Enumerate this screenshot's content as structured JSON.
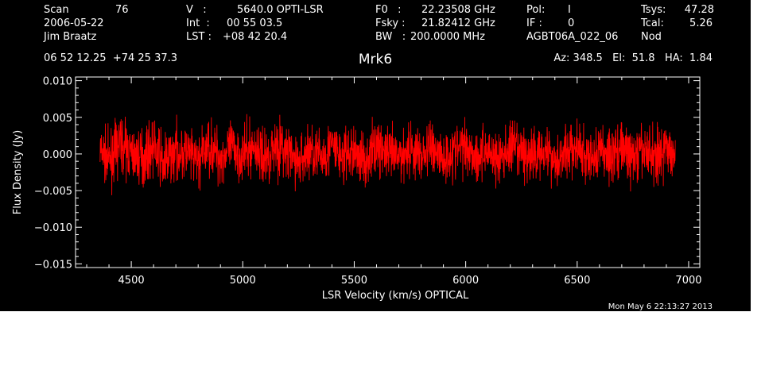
{
  "header": {
    "scan_label": "Scan",
    "scan_value": "76",
    "date": "2006-05-22",
    "observer": "Jim Braatz",
    "v_label": "V   :",
    "v_value": "5640.0 OPTI-LSR",
    "int_label": "Int  :",
    "int_value": "00 55 03.5",
    "lst_label": "LST :",
    "lst_value": "+08 42 20.4",
    "f0_label": "F0   :",
    "f0_value": "22.23508 GHz",
    "fsky_label": "Fsky :",
    "fsky_value": "21.82412 GHz",
    "bw_label": "BW   :",
    "bw_value": "200.0000 MHz",
    "pol_label": "Pol:",
    "pol_value": "I",
    "if_label": "IF :",
    "if_value": "0",
    "project": "AGBT06A_022_06",
    "tsys_label": "Tsys:",
    "tsys_value": "47.28",
    "tcal_label": "Tcal:",
    "tcal_value": "5.26",
    "mode": "Nod",
    "coords": "06 52 12.25  +74 25 37.3",
    "azelha": "Az: 348.5   El:  51.8   HA:  1.84"
  },
  "footer": {
    "timestamp": "Mon May  6 22:13:27 2013"
  },
  "colors": {
    "background": "#000000",
    "axes": "#ffffff",
    "trace": "#ff0000"
  },
  "chart_data": {
    "type": "line",
    "title": "Mrk6",
    "xlabel": "LSR Velocity (km/s) OPTICAL",
    "ylabel": "Flux Density (Jy)",
    "xlim": [
      4250,
      7050
    ],
    "ylim": [
      -0.0155,
      0.0105
    ],
    "xticks": [
      4500,
      5000,
      5500,
      6000,
      6500,
      7000
    ],
    "xtick_labels": [
      "4500",
      "5000",
      "5500",
      "6000",
      "6500",
      "7000"
    ],
    "yticks": [
      0.01,
      0.005,
      0.0,
      -0.005,
      -0.01,
      -0.015
    ],
    "ytick_labels": [
      "0.010",
      "0.005",
      "0.000",
      "−0.005",
      "−0.010",
      "−0.015"
    ],
    "grid": false,
    "series": [
      {
        "x": [
          4360,
          4400,
          4450,
          4500,
          4550,
          4600,
          4650,
          4700,
          4750,
          4800,
          4850,
          4900,
          4950,
          5000,
          5050,
          5100,
          5150,
          5200,
          5250,
          5300,
          5350,
          5400,
          5450,
          5500,
          5550,
          5600,
          5650,
          5700,
          5750,
          5800,
          5850,
          5900,
          5950,
          6000,
          6050,
          6100,
          6150,
          6200,
          6250,
          6300,
          6350,
          6400,
          6450,
          6500,
          6550,
          6600,
          6650,
          6700,
          6750,
          6800,
          6850,
          6900,
          6940
        ],
        "values": [
          0.0005,
          -0.001,
          0.0015,
          0.0,
          -0.0005,
          0.001,
          -0.0015,
          0.0005,
          0.0,
          -0.001,
          0.0012,
          -0.0005,
          0.0008,
          -0.0002,
          0.001,
          -0.0008,
          0.0015,
          0.0,
          -0.0012,
          0.0006,
          -0.0004,
          0.001,
          -0.0006,
          0.0003,
          -0.001,
          0.0012,
          0.0,
          -0.0005,
          0.0008,
          -0.0003,
          0.0011,
          -0.0007,
          0.0004,
          0.0013,
          -0.0004,
          0.0006,
          -0.001,
          0.0009,
          0.0001,
          -0.0006,
          0.001,
          -0.0009,
          0.0003,
          0.0007,
          -0.0011,
          0.0005,
          -0.0002,
          0.0009,
          -0.0007,
          0.0004,
          -0.0001,
          0.0006,
          0.0002
        ],
        "envelope": [
          0.0055,
          0.006,
          0.0065,
          0.006,
          0.0065,
          0.006,
          0.007,
          0.006,
          0.0065,
          0.006,
          0.0065,
          0.0065,
          0.006,
          0.0065,
          0.006,
          0.0065,
          0.007,
          0.0065,
          0.006,
          0.0065,
          0.006,
          0.0065,
          0.0065,
          0.006,
          0.0065,
          0.006,
          0.0065,
          0.006,
          0.0065,
          0.006,
          0.0065,
          0.006,
          0.0065,
          0.006,
          0.0065,
          0.006,
          0.0065,
          0.006,
          0.0065,
          0.006,
          0.0065,
          0.006,
          0.0065,
          0.006,
          0.0065,
          0.0065,
          0.007,
          0.0065,
          0.006,
          0.0065,
          0.0065,
          0.006,
          0.006
        ]
      }
    ]
  }
}
